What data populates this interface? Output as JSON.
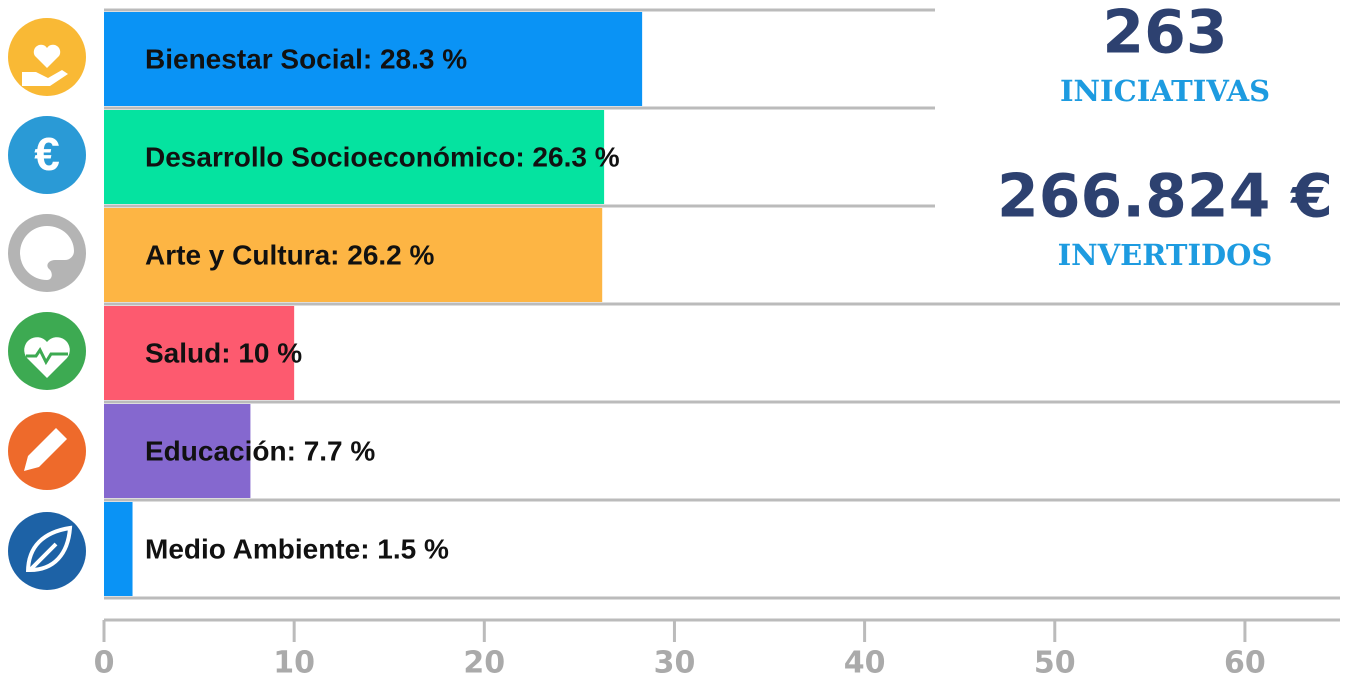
{
  "chart_data": {
    "type": "hbar",
    "value_labels": [
      "Bienestar Social: 28.3 %",
      "Desarrollo Socioeconómico: 26.3 %",
      "Arte y Cultura: 26.2 %",
      "Salud: 10 %",
      "Educación: 7.7 %",
      "Medio Ambiente: 1.5 %"
    ],
    "values": [
      28.3,
      26.3,
      26.2,
      10,
      7.7,
      1.5
    ],
    "colors": [
      "#0a93f5",
      "#05e3a0",
      "#fdb544",
      "#fd5a6f",
      "#8568cf",
      "#0a93f5"
    ],
    "xlim": [
      0,
      65
    ],
    "xticks": [
      0,
      10,
      20,
      30,
      40,
      50,
      60
    ],
    "annotations": [
      "263",
      "INICIATIVAS",
      "266.824 €",
      "INVERTIDOS"
    ]
  }
}
